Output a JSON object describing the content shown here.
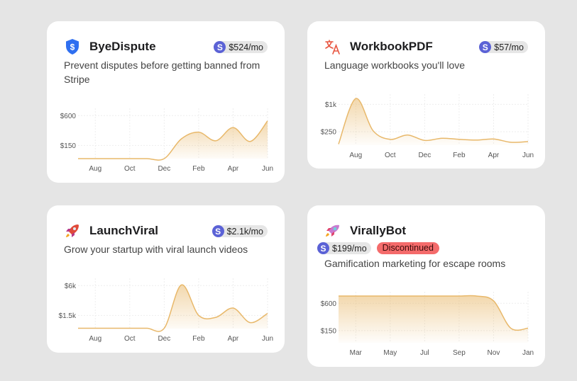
{
  "accent_color": "#e8b86a",
  "stripe_color": "#5b62d6",
  "cards": [
    {
      "name": "ByeDispute",
      "icon": "shield-dollar-icon",
      "price": "$524/mo",
      "stripe_letter": "S",
      "description": "Prevent disputes before getting banned from Stripe",
      "chart_data": {
        "type": "area",
        "x": [
          "Jul",
          "Aug",
          "Sep",
          "Oct",
          "Nov",
          "Dec",
          "Jan",
          "Feb",
          "Mar",
          "Apr",
          "May",
          "Jun"
        ],
        "values": [
          -50,
          -50,
          -50,
          -50,
          -50,
          -50,
          250,
          350,
          220,
          420,
          210,
          520
        ],
        "xtick_labels": [
          "Aug",
          "Oct",
          "Dec",
          "Feb",
          "Apr",
          "Jun"
        ],
        "ytick_values": [
          600,
          150
        ],
        "ytick_labels": [
          "$600",
          "$150"
        ],
        "ylim": [
          -50,
          710
        ],
        "grid": true
      }
    },
    {
      "name": "WorkbookPDF",
      "icon": "translate-icon",
      "price": "$57/mo",
      "stripe_letter": "S",
      "description": "Language workbooks you'll love",
      "chart_data": {
        "type": "area",
        "x": [
          "Jul",
          "Aug",
          "Sep",
          "Oct",
          "Nov",
          "Dec",
          "Jan",
          "Feb",
          "Mar",
          "Apr",
          "May",
          "Jun"
        ],
        "values": [
          -90,
          1160,
          280,
          40,
          160,
          10,
          70,
          40,
          20,
          50,
          -40,
          -20
        ],
        "xtick_labels": [
          "Aug",
          "Oct",
          "Dec",
          "Feb",
          "Apr",
          "Jun"
        ],
        "ytick_values": [
          1000,
          250
        ],
        "ytick_labels": [
          "$1k",
          "$250"
        ],
        "ylim": [
          -120,
          1280
        ],
        "grid": true
      }
    },
    {
      "name": "LaunchViral",
      "icon": "rocket-icon",
      "price": "$2.1k/mo",
      "stripe_letter": "S",
      "description": "Grow your startup with viral launch videos",
      "chart_data": {
        "type": "area",
        "x": [
          "Jul",
          "Aug",
          "Sep",
          "Oct",
          "Nov",
          "Dec",
          "Jan",
          "Feb",
          "Mar",
          "Apr",
          "May",
          "Jun"
        ],
        "values": [
          -450,
          -450,
          -450,
          -450,
          -450,
          -450,
          6100,
          1500,
          1200,
          2600,
          400,
          1800
        ],
        "xtick_labels": [
          "Aug",
          "Oct",
          "Dec",
          "Feb",
          "Apr",
          "Jun"
        ],
        "ytick_values": [
          6000,
          1500
        ],
        "ytick_labels": [
          "$6k",
          "$1.5k"
        ],
        "ylim": [
          -500,
          7100
        ],
        "grid": true
      }
    },
    {
      "name": "VirallyBot",
      "icon": "rocket-icon",
      "price": "$199/mo",
      "stripe_letter": "S",
      "status": "Discontinued",
      "description": "Gamification marketing for escape rooms",
      "chart_data": {
        "type": "area",
        "x": [
          "Feb",
          "Mar",
          "Apr",
          "May",
          "Jun",
          "Jul",
          "Aug",
          "Sep",
          "Oct",
          "Nov",
          "Dec",
          "Jan"
        ],
        "values": [
          720,
          720,
          720,
          720,
          720,
          720,
          720,
          720,
          720,
          640,
          190,
          190
        ],
        "xtick_labels": [
          "Mar",
          "May",
          "Jul",
          "Sep",
          "Nov",
          "Jan"
        ],
        "ytick_values": [
          600,
          150
        ],
        "ytick_labels": [
          "$600",
          "$150"
        ],
        "ylim": [
          -50,
          790
        ],
        "grid": true
      }
    }
  ]
}
